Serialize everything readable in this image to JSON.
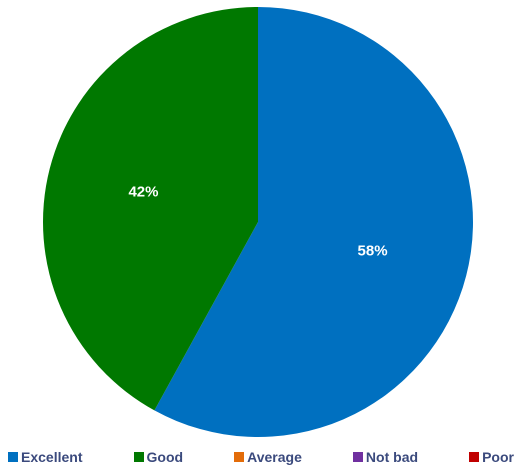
{
  "chart_data": {
    "type": "pie",
    "categories": [
      "Excellent",
      "Good",
      "Average",
      "Not bad",
      "Poor"
    ],
    "values": [
      58,
      42,
      0,
      0,
      0
    ],
    "data_labels": [
      "58%",
      "42%",
      "",
      "",
      ""
    ],
    "colors": [
      "#0070c0",
      "#007800",
      "#e36c09",
      "#7030a0",
      "#c00000"
    ],
    "legend_position": "bottom",
    "start_angle_deg": 0,
    "direction": "clockwise"
  }
}
